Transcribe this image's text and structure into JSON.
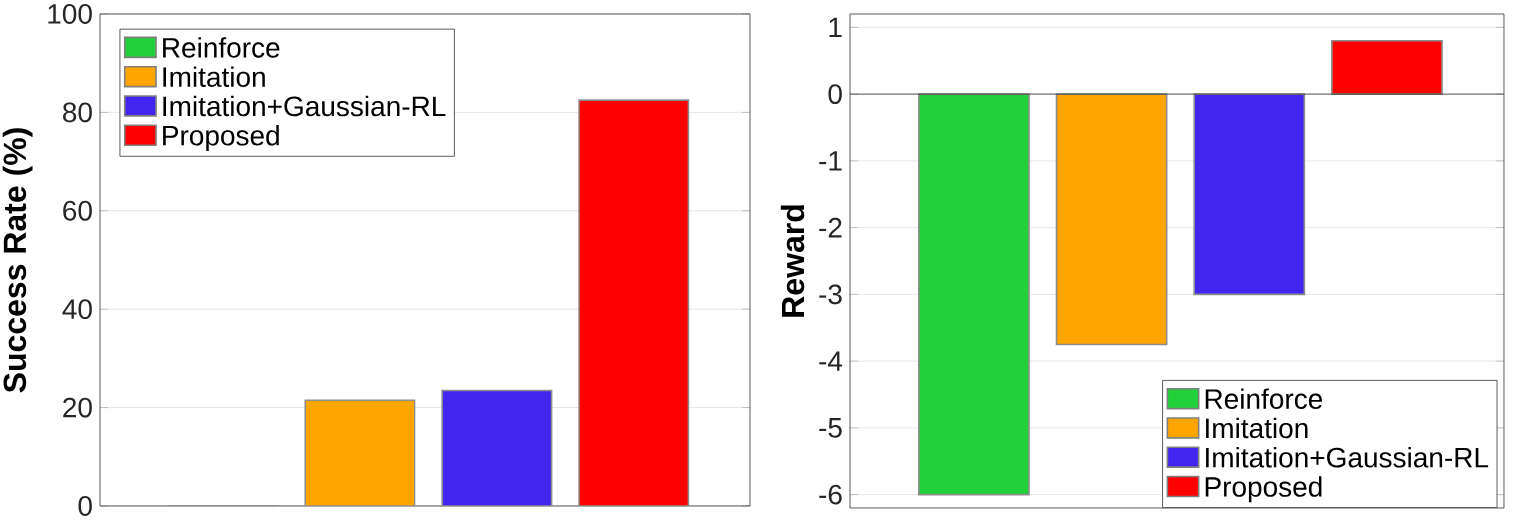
{
  "chart_data": [
    {
      "type": "bar",
      "ylabel": "Success Rate (%)",
      "categories": [
        null,
        null,
        null,
        null
      ],
      "ylim": [
        0,
        100
      ],
      "yticks": [
        0,
        20,
        40,
        60,
        80,
        100
      ],
      "grid": "y",
      "legend": "top left",
      "tick_labels": "y",
      "series": [
        {
          "name": "Reinforce",
          "color": "#22d03a",
          "values": [
            0,
            null,
            null,
            null
          ]
        },
        {
          "name": "Imitation",
          "color": "#ffa500",
          "values": [
            null,
            21.5,
            null,
            null
          ]
        },
        {
          "name": "Imitation+Gaussian-RL",
          "color": "#4226f0",
          "values": [
            null,
            null,
            23.5,
            null
          ]
        },
        {
          "name": "Proposed",
          "color": "#ff0000",
          "values": [
            null,
            null,
            null,
            82.5
          ]
        }
      ]
    },
    {
      "type": "bar",
      "ylabel": "Reward",
      "categories": [
        null,
        null,
        null,
        null
      ],
      "ylim": [
        -6.2,
        1.2
      ],
      "yticks": [
        -6,
        -5,
        -4,
        -3,
        -2,
        -1,
        0,
        1
      ],
      "grid": "y",
      "legend": "bottom right",
      "tick_labels": "y",
      "series": [
        {
          "name": "Reinforce",
          "color": "#22d03a",
          "values": [
            -6,
            null,
            null,
            null
          ]
        },
        {
          "name": "Imitation",
          "color": "#ffa500",
          "values": [
            null,
            -3.75,
            null,
            null
          ]
        },
        {
          "name": "Imitation+Gaussian-RL",
          "color": "#4226f0",
          "values": [
            null,
            null,
            -3,
            null
          ]
        },
        {
          "name": "Proposed",
          "color": "#ff0000",
          "values": [
            null,
            null,
            null,
            0.8
          ]
        }
      ]
    }
  ]
}
